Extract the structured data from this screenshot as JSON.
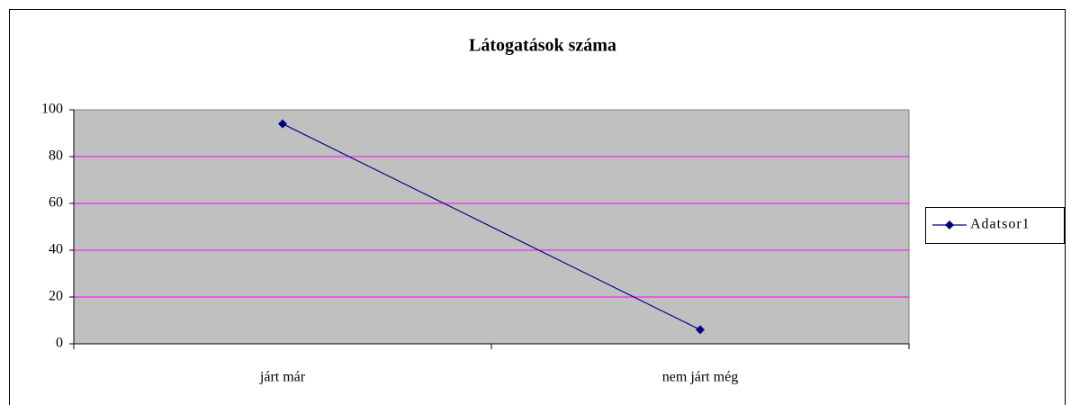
{
  "chart_data": {
    "type": "line",
    "title": "Látogatások száma",
    "categories": [
      "járt már",
      "nem járt még"
    ],
    "series": [
      {
        "name": "Adatsor1",
        "color": "#000080",
        "values": [
          94,
          6
        ]
      }
    ],
    "ylim": [
      0,
      100
    ],
    "yticks": [
      0,
      20,
      40,
      60,
      80,
      100
    ],
    "grid": true,
    "grid_color": "#ff00ff",
    "plot_background": "#c0c0c0",
    "legend": "right"
  }
}
